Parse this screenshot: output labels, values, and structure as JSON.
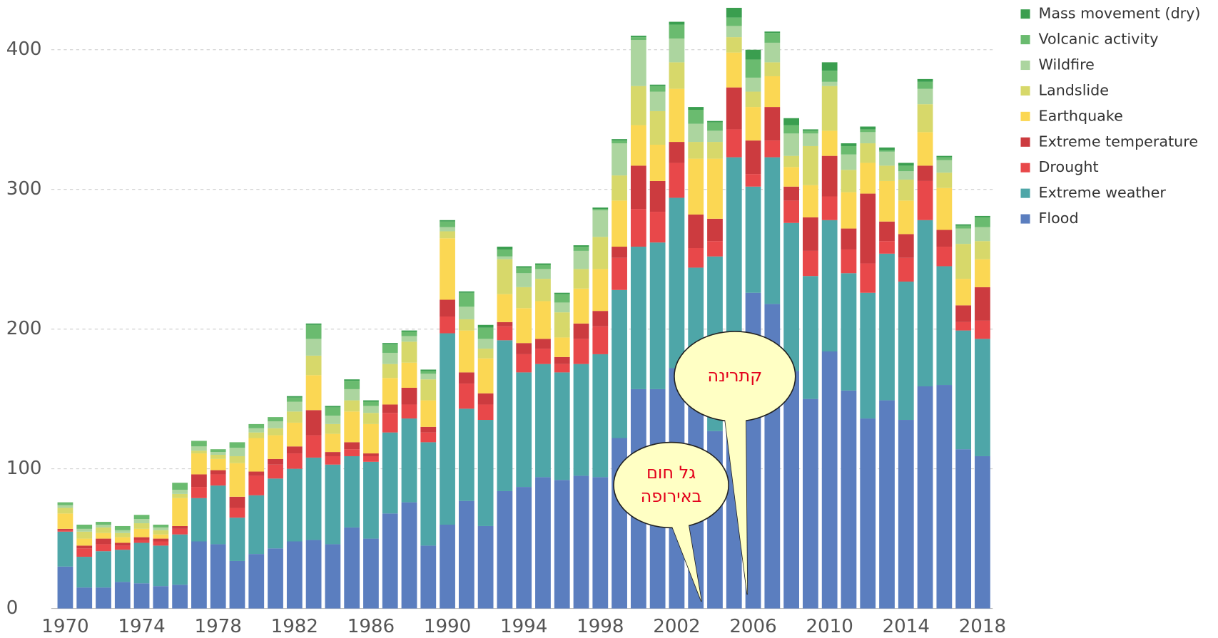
{
  "chart_data": {
    "type": "stacked_bar",
    "categories": [
      "1970",
      null,
      null,
      null,
      "1974",
      null,
      null,
      null,
      "1978",
      null,
      null,
      null,
      "1982",
      null,
      null,
      null,
      "1986",
      null,
      null,
      null,
      "1990",
      null,
      null,
      null,
      "1994",
      null,
      null,
      null,
      "1998",
      null,
      null,
      null,
      "2002",
      null,
      null,
      null,
      "2006",
      null,
      null,
      null,
      "2010",
      null,
      null,
      null,
      "2014",
      null,
      null,
      null,
      "2018"
    ],
    "ylim": [
      0,
      433
    ],
    "yticks": [
      0,
      100,
      200,
      300,
      400
    ],
    "grid": true,
    "legend": "right",
    "series": [
      {
        "name": "Flood",
        "color": "#5b7ebf",
        "values": [
          30,
          15,
          15,
          19,
          18,
          16,
          17,
          48,
          46,
          34,
          39,
          43,
          48,
          49,
          46,
          58,
          50,
          68,
          76,
          45,
          60,
          77,
          59,
          84,
          87,
          94,
          92,
          95,
          94,
          122,
          157,
          157,
          172,
          170,
          127,
          193,
          226,
          218,
          170,
          150,
          184,
          156,
          136,
          149,
          135,
          159,
          160,
          114,
          109
        ]
      },
      {
        "name": "Extreme weather",
        "color": "#4ea6a8",
        "values": [
          25,
          22,
          26,
          23,
          29,
          29,
          36,
          31,
          42,
          31,
          42,
          50,
          52,
          59,
          57,
          51,
          55,
          58,
          60,
          74,
          137,
          66,
          76,
          108,
          82,
          81,
          77,
          80,
          88,
          106,
          102,
          105,
          122,
          74,
          125,
          130,
          76,
          105,
          106,
          88,
          94,
          84,
          90,
          105,
          99,
          119,
          85,
          85,
          84
        ]
      },
      {
        "name": "Drought",
        "color": "#e8484a",
        "values": [
          1,
          6,
          5,
          3,
          2,
          3,
          4,
          8,
          8,
          7,
          14,
          10,
          11,
          16,
          6,
          5,
          4,
          14,
          10,
          7,
          12,
          18,
          11,
          10,
          13,
          11,
          6,
          18,
          20,
          23,
          27,
          22,
          25,
          14,
          11,
          20,
          9,
          12,
          16,
          18,
          17,
          17,
          21,
          9,
          17,
          28,
          14,
          6,
          13
        ]
      },
      {
        "name": "Extreme temperature",
        "color": "#cc3b3f",
        "values": [
          1,
          2,
          4,
          2,
          2,
          2,
          2,
          9,
          3,
          8,
          3,
          4,
          5,
          18,
          3,
          5,
          2,
          6,
          12,
          4,
          12,
          8,
          8,
          3,
          8,
          7,
          5,
          11,
          11,
          8,
          31,
          22,
          15,
          24,
          16,
          30,
          24,
          24,
          10,
          24,
          29,
          15,
          50,
          14,
          17,
          11,
          12,
          12,
          24
        ]
      },
      {
        "name": "Earthquake",
        "color": "#fbd753",
        "values": [
          11,
          5,
          4,
          4,
          6,
          3,
          20,
          15,
          8,
          24,
          24,
          17,
          17,
          25,
          13,
          22,
          21,
          19,
          18,
          19,
          44,
          30,
          25,
          20,
          25,
          27,
          14,
          25,
          30,
          33,
          29,
          26,
          38,
          40,
          43,
          25,
          24,
          22,
          14,
          23,
          18,
          26,
          22,
          29,
          24,
          24,
          30,
          19,
          20
        ]
      },
      {
        "name": "Landslide",
        "color": "#d7d86a",
        "values": [
          4,
          5,
          4,
          3,
          4,
          3,
          3,
          2,
          3,
          5,
          4,
          5,
          8,
          14,
          7,
          8,
          8,
          10,
          15,
          15,
          5,
          8,
          7,
          25,
          15,
          16,
          18,
          14,
          23,
          18,
          28,
          24,
          19,
          12,
          12,
          11,
          11,
          10,
          8,
          28,
          32,
          16,
          14,
          11,
          15,
          20,
          11,
          25,
          13
        ]
      },
      {
        "name": "Wildfire",
        "color": "#acd59f",
        "values": [
          2,
          2,
          2,
          2,
          3,
          2,
          3,
          3,
          2,
          6,
          3,
          5,
          7,
          12,
          6,
          8,
          5,
          8,
          4,
          4,
          3,
          9,
          7,
          2,
          10,
          7,
          7,
          13,
          19,
          23,
          33,
          14,
          17,
          13,
          8,
          8,
          10,
          14,
          16,
          9,
          3,
          11,
          8,
          10,
          6,
          11,
          9,
          11,
          10
        ]
      },
      {
        "name": "Volcanic activity",
        "color": "#6abb6f",
        "values": [
          2,
          3,
          2,
          3,
          3,
          2,
          5,
          4,
          2,
          4,
          3,
          3,
          3,
          10,
          6,
          6,
          3,
          6,
          3,
          2,
          4,
          10,
          8,
          5,
          4,
          3,
          6,
          3,
          1,
          2,
          2,
          4,
          10,
          10,
          6,
          6,
          13,
          7,
          6,
          2,
          8,
          6,
          2,
          1,
          4,
          5,
          2,
          2,
          7
        ]
      },
      {
        "name": "Mass movement (dry)",
        "color": "#3a9e4f",
        "values": [
          0,
          0,
          0,
          0,
          0,
          0,
          0,
          0,
          0,
          0,
          0,
          0,
          1,
          1,
          1,
          1,
          1,
          1,
          1,
          1,
          1,
          1,
          2,
          2,
          1,
          1,
          1,
          1,
          1,
          1,
          1,
          1,
          2,
          2,
          1,
          7,
          7,
          1,
          5,
          1,
          6,
          2,
          2,
          2,
          2,
          2,
          1,
          1,
          1
        ]
      }
    ],
    "annotations": [
      {
        "lines": [
          "קתרינה"
        ]
      },
      {
        "lines": [
          "גל חום",
          "באירופה"
        ]
      }
    ]
  }
}
